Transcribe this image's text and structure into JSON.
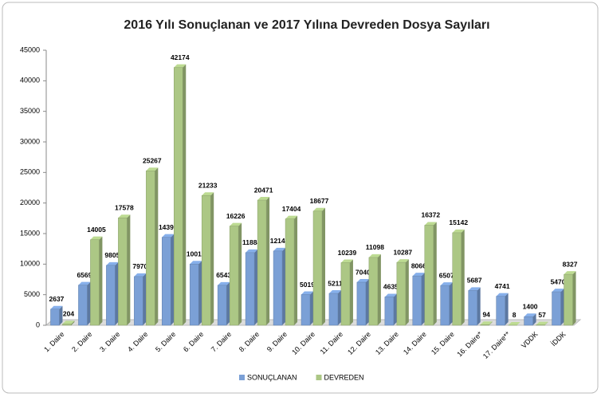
{
  "chart_data": {
    "type": "bar",
    "title": "2016 Yılı Sonuçlanan ve 2017 Yılına Devreden Dosya Sayıları",
    "categories": [
      "1. Daire",
      "2. Daire",
      "3. Daire",
      "4. Daire",
      "5. Daire",
      "6. Daire",
      "7. Daire",
      "8. Daire",
      "9. Daire",
      "10. Daire",
      "11. Daire",
      "12. Daire",
      "13. Daire",
      "14. Daire",
      "15. Daire",
      "16. Daire*",
      "17. Daire**",
      "VDDK",
      "İDDK"
    ],
    "series": [
      {
        "name": "SONUÇLANAN",
        "color": "#7ba0d6",
        "values": [
          2637,
          6569,
          9805,
          7970,
          14391,
          10017,
          6543,
          11884,
          12149,
          5019,
          5211,
          7040,
          4635,
          8066,
          6507,
          5687,
          4741,
          1400,
          5470
        ]
      },
      {
        "name": "DEVREDEN",
        "color": "#acc785",
        "values": [
          204,
          14005,
          17578,
          25267,
          42174,
          21233,
          16226,
          20471,
          17404,
          18677,
          10239,
          11098,
          10287,
          16372,
          15142,
          94,
          8,
          57,
          8327
        ]
      }
    ],
    "ylim": [
      0,
      45000
    ],
    "yticks": [
      0,
      5000,
      10000,
      15000,
      20000,
      25000,
      30000,
      35000,
      40000,
      45000
    ],
    "grid": false,
    "legend": "bottom"
  }
}
